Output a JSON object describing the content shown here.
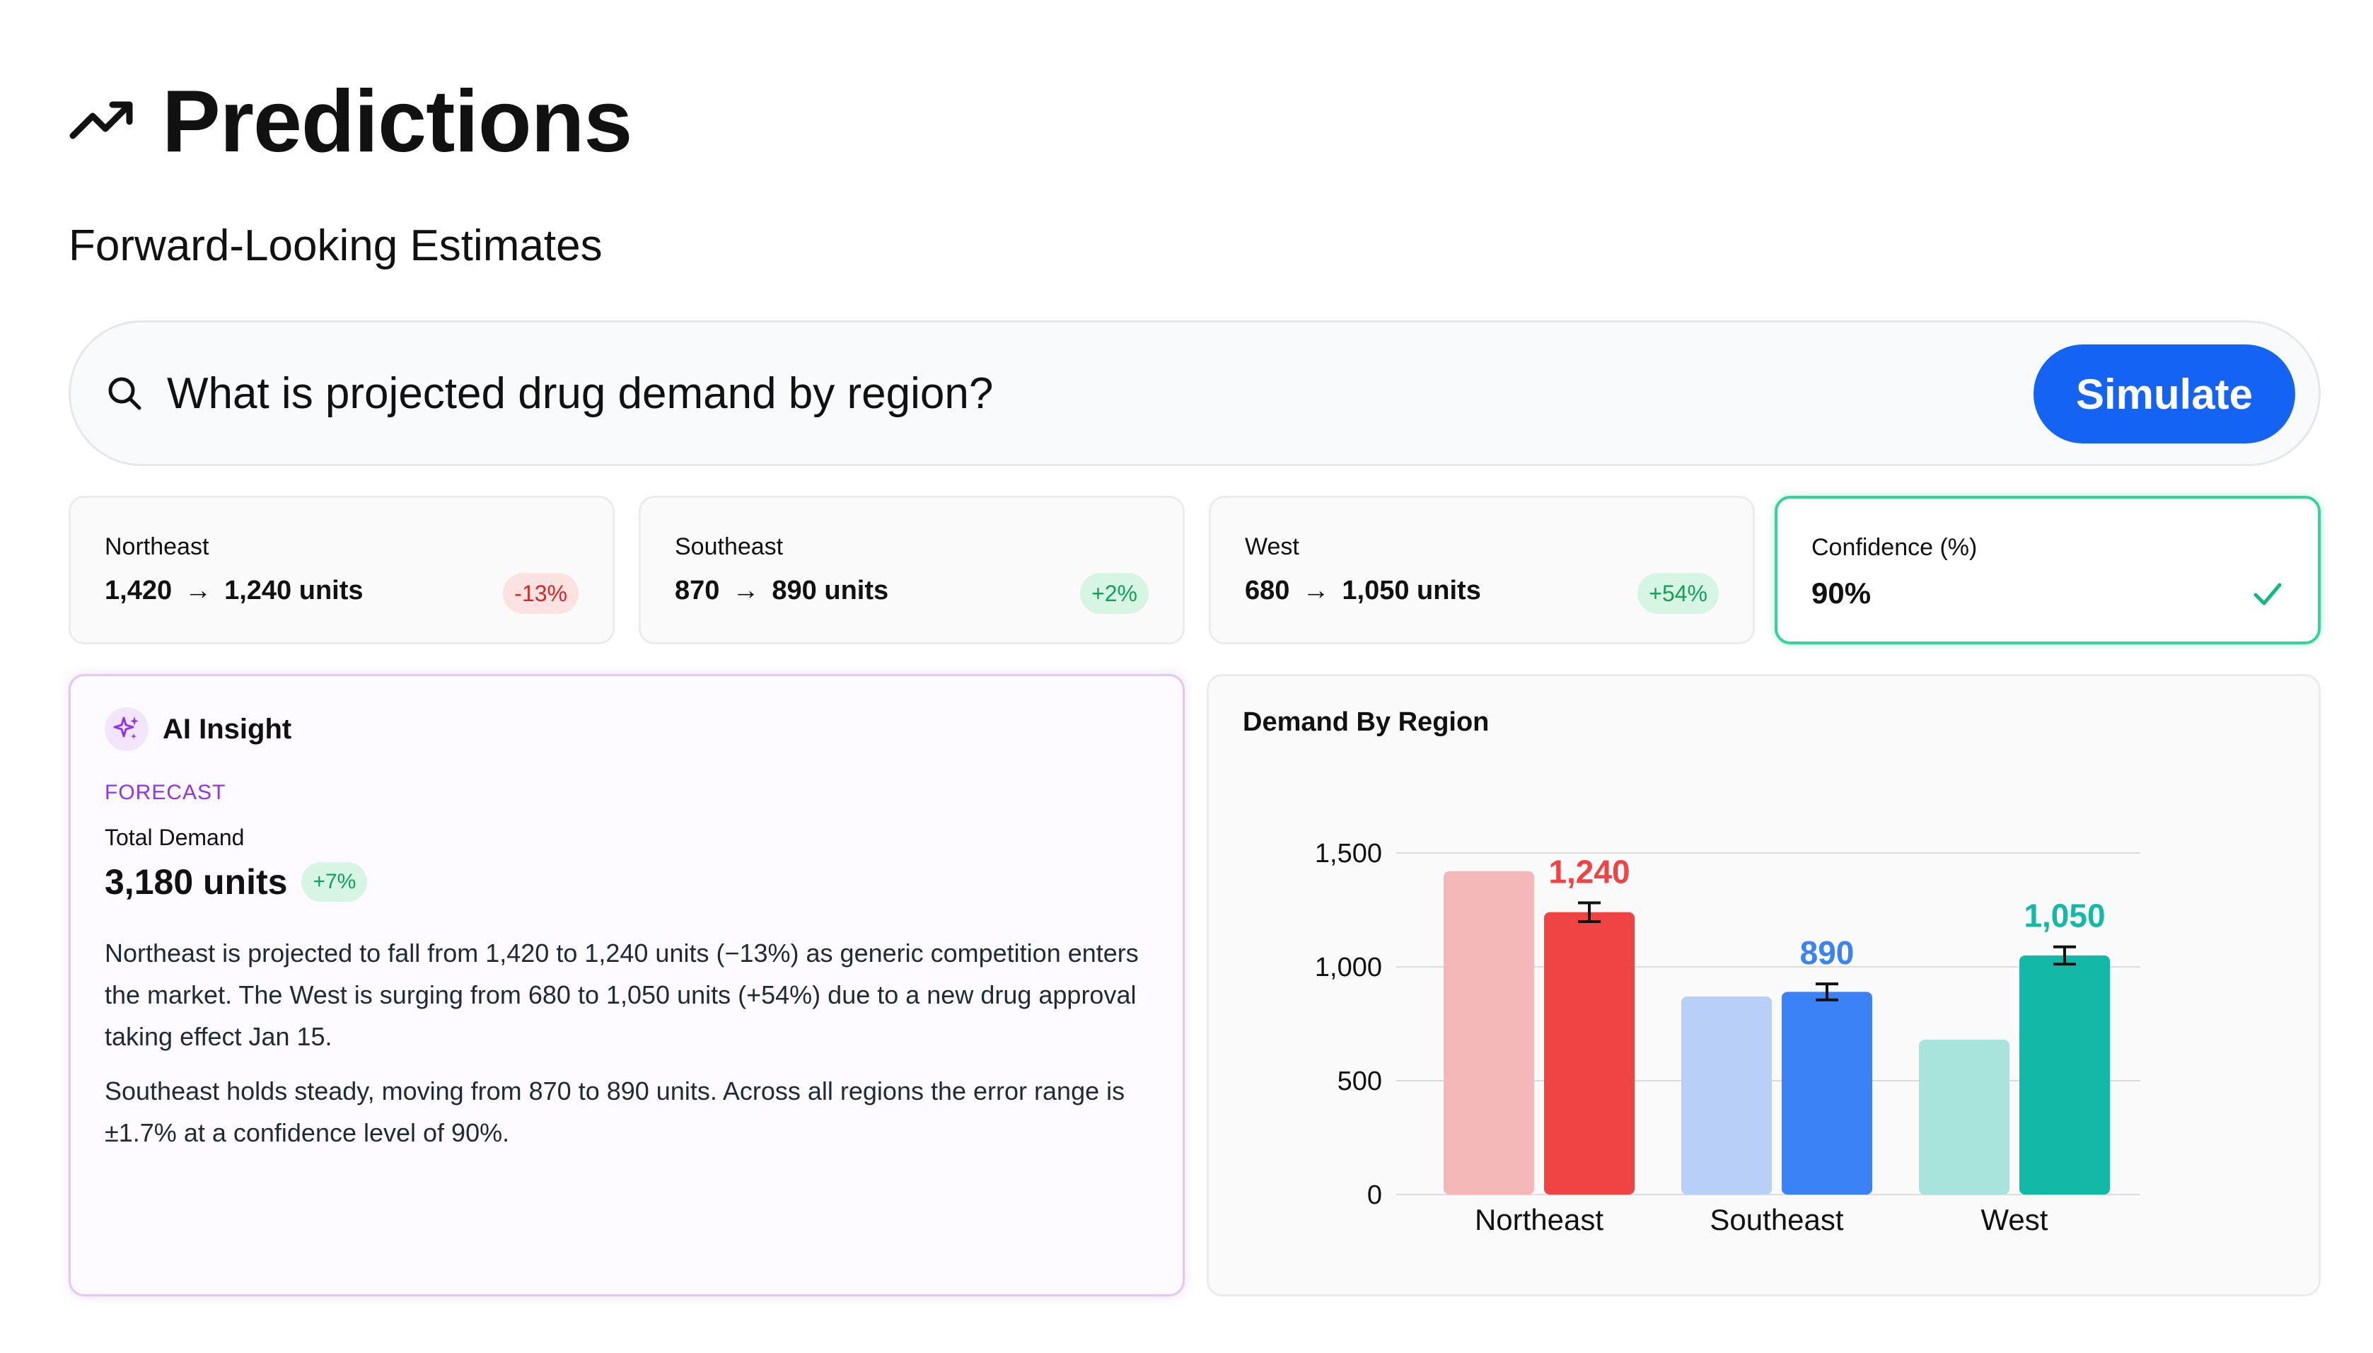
{
  "header": {
    "title": "Predictions",
    "subtitle": "Forward-Looking Estimates",
    "icon": "trending-up-icon"
  },
  "search": {
    "query": "What is projected drug demand by region?",
    "button_label": "Simulate"
  },
  "kpis": [
    {
      "label": "Northeast",
      "from": "1,420",
      "to": "1,240 units",
      "change": "-13%",
      "trend": "negative"
    },
    {
      "label": "Southeast",
      "from": "870",
      "to": "890 units",
      "change": "+2%",
      "trend": "positive"
    },
    {
      "label": "West",
      "from": "680",
      "to": "1,050 units",
      "change": "+54%",
      "trend": "positive"
    }
  ],
  "confidence": {
    "label": "Confidence (%)",
    "value": "90%"
  },
  "insight": {
    "title": "AI Insight",
    "tag": "FORECAST",
    "metric_label": "Total Demand",
    "metric_value": "3,180 units",
    "metric_change": "+7%",
    "paragraph_1": "Northeast is projected to fall from 1,420 to 1,240 units (−13%) as generic competition enters the market. The West is surging from 680 to 1,050 units (+54%) due to a new drug approval taking effect Jan 15.",
    "paragraph_2": "Southeast holds steady, moving from 870 to 890 units. Across all regions the error range is ±1.7% at a confidence level of 90%."
  },
  "chart_panel": {
    "title": "Demand By Region"
  },
  "chart_data": {
    "type": "bar",
    "categories": [
      "Northeast",
      "Southeast",
      "West"
    ],
    "series": [
      {
        "role": "current",
        "values": [
          1420,
          870,
          680
        ]
      },
      {
        "role": "projected",
        "values": [
          1240,
          890,
          1050
        ]
      }
    ],
    "error_range_pct": 1.7,
    "data_labels": [
      "1,240",
      "890",
      "1,050"
    ],
    "yticks": [
      "0",
      "500",
      "1,000",
      "1,500"
    ],
    "ylim": [
      0,
      1500
    ],
    "colors": {
      "Northeast": {
        "current": "#f4b8b8",
        "projected": "#ef4444"
      },
      "Southeast": {
        "current": "#b8d0f7",
        "projected": "#3b82f6"
      },
      "West": {
        "current": "#a8e4db",
        "projected": "#14b8a6"
      }
    },
    "grid": true,
    "legend": "none"
  }
}
